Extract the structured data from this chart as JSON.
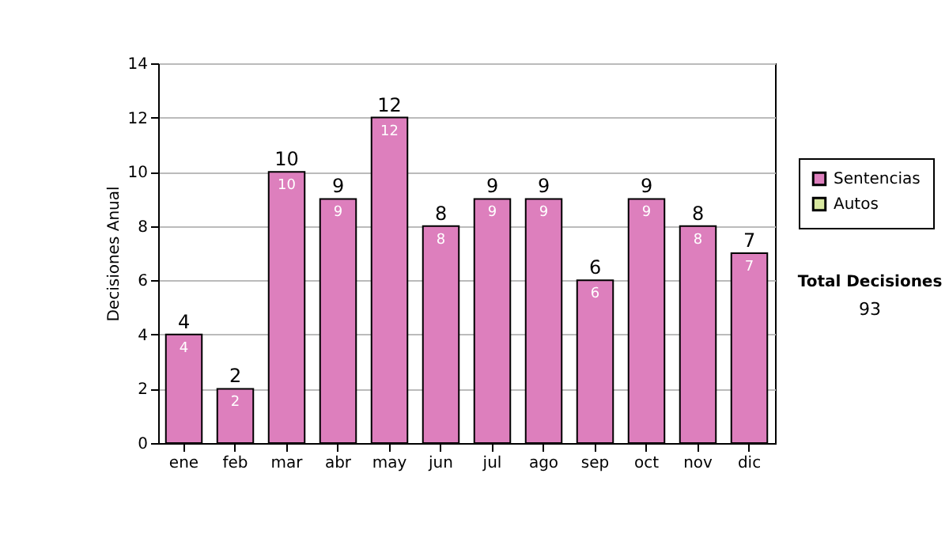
{
  "chart_data": {
    "type": "bar",
    "ylabel": "Decisiones Anual",
    "categories": [
      "ene",
      "feb",
      "mar",
      "abr",
      "may",
      "jun",
      "jul",
      "ago",
      "sep",
      "oct",
      "nov",
      "dic"
    ],
    "series": [
      {
        "name": "Sentencias",
        "color": "#dd7fbd",
        "values": [
          4,
          2,
          10,
          9,
          12,
          8,
          9,
          9,
          6,
          9,
          8,
          7
        ],
        "value_labels": [
          "4",
          "2",
          "10",
          "9",
          "12",
          "8",
          "9",
          "9",
          "6",
          "9",
          "8",
          "7"
        ]
      },
      {
        "name": "Autos",
        "color": "#d8e8a0",
        "values": [
          0,
          0,
          0,
          0,
          0,
          0,
          0,
          0,
          0,
          0,
          0,
          0
        ]
      }
    ],
    "totals": [
      "4",
      "2",
      "10",
      "9",
      "12",
      "8",
      "9",
      "9",
      "6",
      "9",
      "8",
      "7"
    ],
    "ylim": [
      0,
      14
    ],
    "yticks": [
      0,
      2,
      4,
      6,
      8,
      10,
      12,
      14
    ],
    "grid": "y",
    "legend": "right",
    "annotations": [
      "Total Decisiones",
      "93"
    ]
  }
}
